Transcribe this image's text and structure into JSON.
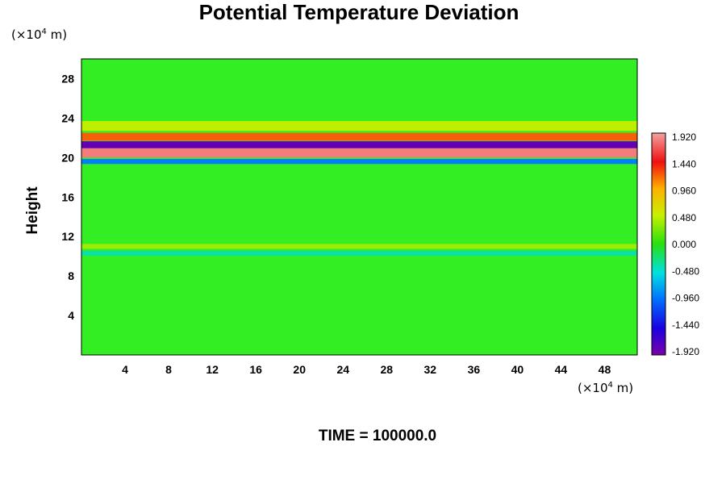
{
  "chart_data": {
    "type": "heatmap",
    "title": "Potential Temperature Deviation",
    "ylabel": "Height",
    "unit_base": "(×10",
    "unit_exp": "4",
    "unit_tail": " m)",
    "x_ticks": [
      4,
      8,
      12,
      16,
      20,
      24,
      28,
      32,
      36,
      40,
      44,
      48
    ],
    "y_ticks": [
      4,
      8,
      12,
      16,
      20,
      24,
      28
    ],
    "xlim": [
      0,
      51
    ],
    "ylim": [
      0,
      30
    ],
    "colorbar": {
      "min": -1.92,
      "max": 1.92,
      "labels": [
        "1.920",
        "1.440",
        "0.960",
        "0.480",
        "0.000",
        "-0.480",
        "-0.960",
        "-1.440",
        "-1.920"
      ]
    },
    "field_features": [
      {
        "kind": "band",
        "y": 20.5,
        "width": 1.0,
        "value": 1.8
      },
      {
        "kind": "band",
        "y": 21.3,
        "width": 0.7,
        "value": -1.8
      },
      {
        "kind": "band",
        "y": 22.1,
        "width": 0.8,
        "value": 1.2
      },
      {
        "kind": "band",
        "y": 19.6,
        "width": 0.5,
        "value": -0.9
      },
      {
        "kind": "band",
        "y": 23.2,
        "width": 1.0,
        "value": 0.45
      },
      {
        "kind": "band",
        "y": 11.0,
        "width": 0.5,
        "value": 0.35
      },
      {
        "kind": "band",
        "y": 10.3,
        "width": 0.5,
        "value": -0.35
      }
    ],
    "footer": "TIME = 100000.0"
  }
}
